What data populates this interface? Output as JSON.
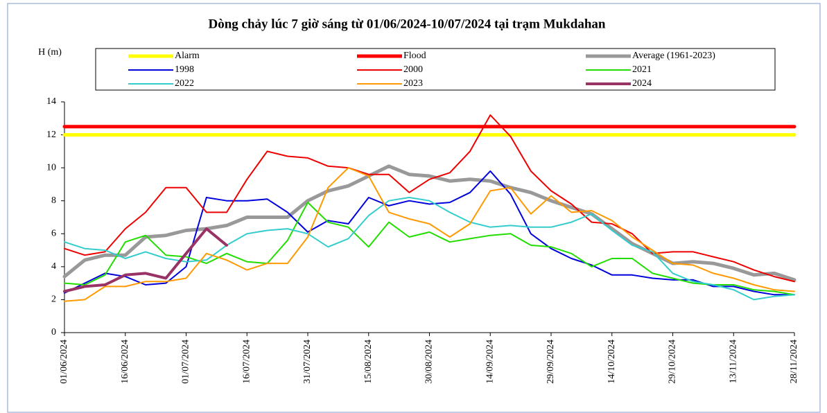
{
  "chart_data": {
    "type": "line",
    "title": "Dòng chảy lúc 7 giờ sáng từ 01/06/2024-10/07/2024 tại trạm Mukdahan",
    "y_label": "H (m)",
    "categories": [
      "01/06/2024",
      null,
      null,
      "16/06/2024",
      null,
      null,
      "01/07/2024",
      null,
      null,
      "16/07/2024",
      null,
      null,
      "31/07/2024",
      null,
      null,
      "15/08/2024",
      null,
      null,
      "30/08/2024",
      null,
      null,
      "14/09/2024",
      null,
      null,
      "29/09/2024",
      null,
      null,
      "14/10/2024",
      null,
      null,
      "29/10/2024",
      null,
      null,
      "13/11/2024",
      null,
      null,
      "28/11/2024"
    ],
    "ylim": [
      0,
      14
    ],
    "yticks": [
      0,
      2,
      4,
      6,
      8,
      10,
      12,
      14
    ],
    "series": [
      {
        "name": "Alarm",
        "color": "#ffff00",
        "width": 5,
        "values": [
          12,
          12,
          12,
          12,
          12,
          12,
          12,
          12,
          12,
          12,
          12,
          12,
          12,
          12,
          12,
          12,
          12,
          12,
          12,
          12,
          12,
          12,
          12,
          12,
          12,
          12,
          12,
          12,
          12,
          12,
          12,
          12,
          12,
          12,
          12,
          12,
          12
        ]
      },
      {
        "name": "Flood",
        "color": "#ff0000",
        "width": 5,
        "values": [
          12.5,
          12.5,
          12.5,
          12.5,
          12.5,
          12.5,
          12.5,
          12.5,
          12.5,
          12.5,
          12.5,
          12.5,
          12.5,
          12.5,
          12.5,
          12.5,
          12.5,
          12.5,
          12.5,
          12.5,
          12.5,
          12.5,
          12.5,
          12.5,
          12.5,
          12.5,
          12.5,
          12.5,
          12.5,
          12.5,
          12.5,
          12.5,
          12.5,
          12.5,
          12.5,
          12.5,
          12.5
        ]
      },
      {
        "name": "Average (1961-2023)",
        "color": "#999999",
        "width": 5,
        "values": [
          3.4,
          4.4,
          4.7,
          4.7,
          5.8,
          5.9,
          6.2,
          6.3,
          6.5,
          7.0,
          7.0,
          7.0,
          8.0,
          8.6,
          8.9,
          9.5,
          10.1,
          9.6,
          9.5,
          9.2,
          9.3,
          9.2,
          8.8,
          8.5,
          8.0,
          7.6,
          7.2,
          6.3,
          5.4,
          4.8,
          4.2,
          4.3,
          4.2,
          3.9,
          3.5,
          3.6,
          3.2
        ]
      },
      {
        "name": "1998",
        "color": "#0000dd",
        "width": 2,
        "values": [
          2.4,
          3.0,
          3.6,
          3.4,
          2.9,
          3.0,
          4.0,
          8.2,
          8.0,
          8.0,
          8.1,
          7.3,
          6.1,
          6.8,
          6.6,
          8.2,
          7.7,
          8.0,
          7.8,
          7.9,
          8.5,
          9.8,
          8.4,
          6.0,
          5.1,
          4.5,
          4.1,
          3.5,
          3.5,
          3.3,
          3.2,
          3.2,
          2.8,
          2.8,
          2.5,
          2.3,
          2.3
        ]
      },
      {
        "name": "2000",
        "color": "#ee0000",
        "width": 2,
        "values": [
          5.1,
          4.7,
          4.9,
          6.3,
          7.3,
          8.8,
          8.8,
          7.3,
          7.3,
          9.3,
          11.0,
          10.7,
          10.6,
          10.1,
          10.0,
          9.6,
          9.6,
          8.5,
          9.3,
          9.7,
          11.0,
          13.2,
          11.9,
          9.8,
          8.6,
          7.8,
          6.7,
          6.6,
          6.0,
          4.8,
          4.9,
          4.9,
          4.6,
          4.3,
          3.8,
          3.4,
          3.1
        ]
      },
      {
        "name": "2021",
        "color": "#22dd00",
        "width": 2,
        "values": [
          3.0,
          2.9,
          3.5,
          5.5,
          5.9,
          4.7,
          4.6,
          4.2,
          4.8,
          4.3,
          4.2,
          5.6,
          7.9,
          6.7,
          6.4,
          5.2,
          6.7,
          5.8,
          6.1,
          5.5,
          5.7,
          5.9,
          6.0,
          5.3,
          5.2,
          4.8,
          4.0,
          4.5,
          4.5,
          3.6,
          3.3,
          3.0,
          2.9,
          2.9,
          2.6,
          2.5,
          2.3
        ]
      },
      {
        "name": "2022",
        "color": "#33cccc",
        "width": 2,
        "values": [
          5.5,
          5.1,
          5.0,
          4.5,
          4.9,
          4.5,
          4.3,
          4.4,
          5.3,
          6.0,
          6.2,
          6.3,
          6.0,
          5.2,
          5.7,
          7.1,
          8.0,
          8.2,
          8.0,
          7.3,
          6.7,
          6.4,
          6.5,
          6.4,
          6.4,
          6.7,
          7.2,
          6.2,
          5.3,
          4.9,
          3.6,
          3.1,
          2.9,
          2.6,
          2.0,
          2.2,
          2.3
        ]
      },
      {
        "name": "2023",
        "color": "#ff9900",
        "width": 2,
        "values": [
          1.9,
          2.0,
          2.8,
          2.8,
          3.1,
          3.1,
          3.3,
          4.8,
          4.4,
          3.8,
          4.2,
          4.2,
          5.8,
          8.8,
          10.0,
          9.5,
          7.3,
          6.9,
          6.6,
          5.8,
          6.6,
          8.6,
          8.8,
          7.2,
          8.3,
          7.3,
          7.4,
          6.8,
          5.8,
          5.0,
          4.2,
          4.1,
          3.6,
          3.3,
          2.9,
          2.6,
          2.5
        ]
      },
      {
        "name": "2024",
        "color": "#993366",
        "width": 4,
        "values": [
          2.5,
          2.8,
          2.9,
          3.5,
          3.6,
          3.3,
          4.8,
          6.3,
          5.3,
          null,
          null,
          null,
          null,
          null,
          null,
          null,
          null,
          null,
          null,
          null,
          null,
          null,
          null,
          null,
          null,
          null,
          null,
          null,
          null,
          null,
          null,
          null,
          null,
          null,
          null,
          null,
          null
        ]
      }
    ]
  }
}
